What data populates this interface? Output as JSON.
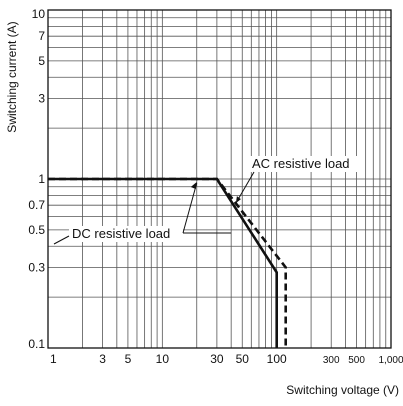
{
  "chart_data": {
    "type": "line",
    "title": "",
    "xlabel": "Switching voltage (V)",
    "ylabel": "Switching current (A)",
    "xscale": "log",
    "yscale": "log",
    "xlim": [
      1,
      1000
    ],
    "ylim": [
      0.1,
      10
    ],
    "grid": true,
    "x_ticks": [
      {
        "v": 1,
        "label": "1"
      },
      {
        "v": 3,
        "label": "3"
      },
      {
        "v": 5,
        "label": "5"
      },
      {
        "v": 10,
        "label": "10"
      },
      {
        "v": 30,
        "label": "30"
      },
      {
        "v": 50,
        "label": "50"
      },
      {
        "v": 100,
        "label": "100"
      },
      {
        "v": 300,
        "label": "300"
      },
      {
        "v": 500,
        "label": "500"
      },
      {
        "v": 1000,
        "label": "1,000"
      }
    ],
    "y_ticks": [
      {
        "v": 0.1,
        "label": "0.1"
      },
      {
        "v": 0.3,
        "label": "0.3"
      },
      {
        "v": 0.5,
        "label": "0.5"
      },
      {
        "v": 0.7,
        "label": "0.7"
      },
      {
        "v": 1,
        "label": "1"
      },
      {
        "v": 3,
        "label": "3"
      },
      {
        "v": 5,
        "label": "5"
      },
      {
        "v": 7,
        "label": "7"
      },
      {
        "v": 10,
        "label": "10"
      }
    ],
    "series": [
      {
        "name": "DC resistive load",
        "style": "solid",
        "color": "#111111",
        "points": [
          [
            1,
            1
          ],
          [
            30,
            1
          ],
          [
            100,
            0.28
          ],
          [
            100,
            0.1
          ]
        ]
      },
      {
        "name": "AC resistive load",
        "style": "dashed",
        "color": "#111111",
        "points": [
          [
            1,
            1
          ],
          [
            30,
            1
          ],
          [
            120,
            0.3
          ],
          [
            120,
            0.1
          ]
        ]
      }
    ]
  }
}
